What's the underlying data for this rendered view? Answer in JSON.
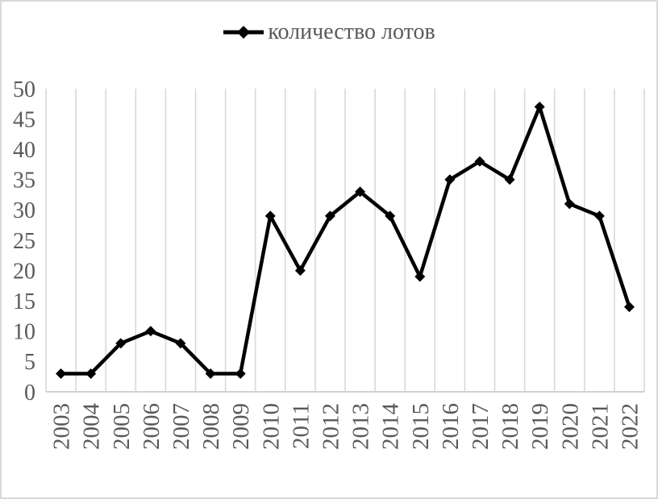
{
  "chart_data": {
    "type": "line",
    "title": "",
    "legend_position": "top-center",
    "marker": "diamond",
    "grid": "vertical-only",
    "categories": [
      "2003",
      "2004",
      "2005",
      "2006",
      "2007",
      "2008",
      "2009",
      "2010",
      "2011",
      "2012",
      "2013",
      "2014",
      "2015",
      "2016",
      "2017",
      "2018",
      "2019",
      "2020",
      "2021",
      "2022"
    ],
    "series": [
      {
        "name": "количество лотов",
        "values": [
          3,
          3,
          8,
          10,
          8,
          3,
          3,
          29,
          20,
          29,
          33,
          29,
          19,
          35,
          38,
          35,
          47,
          31,
          29,
          14
        ]
      }
    ],
    "xlabel": "",
    "ylabel": "",
    "ylim": [
      0,
      50
    ],
    "yticks": [
      0,
      5,
      10,
      15,
      20,
      25,
      30,
      35,
      40,
      45,
      50
    ],
    "colors": {
      "series_line": "#000000",
      "marker_fill": "#000000",
      "gridline": "#d9d9d9",
      "axis_line": "#d3d3d3",
      "tick_labels": "#595959",
      "legend_text": "#595959",
      "background": "#ffffff",
      "frame_border": "#d9d9d9"
    }
  }
}
